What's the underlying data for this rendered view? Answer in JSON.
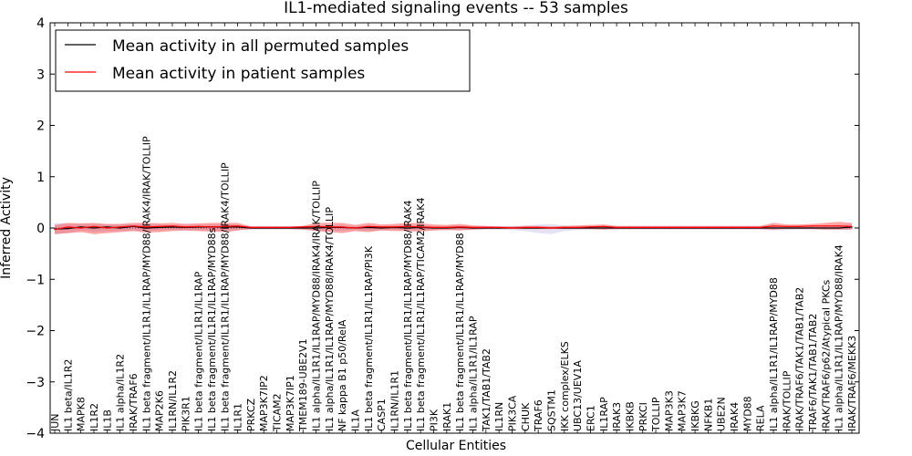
{
  "chart_data": {
    "type": "line",
    "title": "IL1-mediated signaling events -- 53 samples",
    "xlabel": "Cellular Entities",
    "ylabel": "Inferred Activity",
    "ylim": [
      -4,
      4
    ],
    "yticks": [
      -4,
      -3,
      -2,
      -1,
      0,
      1,
      2,
      3,
      4
    ],
    "grid": false,
    "legend_position": "top-left",
    "categories": [
      "JUN",
      "IL1 beta/IL1R2",
      "MAPK8",
      "IL1R2",
      "IL1B",
      "IL1 alpha/IL1R2",
      "IRAK/TRAF6",
      "IL1 beta fragment/IL1R1/IL1RAP/MYD88/IRAK4/IRAK/TOLLIP",
      "MAP2K6",
      "IL1RN/IL1R2",
      "PIK3R1",
      "IL1 beta fragment/IL1R1/IL1RAP",
      "IL1 beta fragment/IL1R1/IL1RAP/MYD88s",
      "IL1 beta fragment/IL1R1/IL1RAP/MYD88/IRAK4/TOLLIP",
      "IL1R1",
      "PRKCZ",
      "MAP3K7IP2",
      "TICAM2",
      "MAP3K7IP1",
      "TMEM189-UBE2V1",
      "IL1 alpha/IL1R1/IL1RAP/MYD88/IRAK4/IRAK/TOLLIP",
      "IL1 alpha/IL1R1/IL1RAP/MYD88/IRAK4/TOLLIP",
      "NF kappa B1 p50/RelA",
      "IL1A",
      "IL1 beta fragment/IL1R1/IL1RAP/PI3K",
      "CASP1",
      "IL1RN/IL1R1",
      "IL1 beta fragment/IL1R1/IL1RAP/MYD88/IRAK4",
      "IL1 beta fragment/IL1R1/IL1RAP/TICAM2/IRAK4",
      "PI3K",
      "IRAK1",
      "IL1 beta fragment/IL1R1/IL1RAP/MYD88",
      "IL1 alpha/IL1R1/IL1RAP",
      "TAK1/TAB1/TAB2",
      "IL1RN",
      "PIK3CA",
      "CHUK",
      "TRAF6",
      "SQSTM1",
      "IKK complex/ELKS",
      "UBC13/UEV1A",
      "ERC1",
      "IL1RAP",
      "IRAK3",
      "IKBKB",
      "PRKCI",
      "TOLLIP",
      "MAP3K3",
      "MAP3K7",
      "IKBKG",
      "NFKB1",
      "UBE2N",
      "IRAK4",
      "MYD88",
      "RELA",
      "IL1 alpha/IL1R1/IL1RAP/MYD88",
      "IRAK/TOLLIP",
      "IRAK/TRAF6/TAK1/TAB1/TAB2",
      "TRAF6/TAK1/TAB1/TAB2",
      "IRAK/TRAF6/p62/Atypical PKCs",
      "IL1 alpha/IL1R1/IL1RAP/MYD88/IRAK4",
      "IRAK/TRAF6/MEKK3"
    ],
    "series": [
      {
        "name": "Mean activity in all permuted samples",
        "color": "#000000",
        "values": [
          -0.02,
          -0.01,
          0.02,
          0.0,
          0.02,
          0.0,
          0.03,
          0.0,
          0.01,
          0.02,
          0.01,
          0.02,
          0.02,
          0.02,
          0.02,
          0.0,
          0.0,
          0.0,
          0.0,
          0.0,
          0.0,
          0.01,
          0.01,
          0.0,
          0.01,
          0.0,
          0.01,
          0.0,
          0.01,
          0.0,
          0.0,
          0.01,
          0.0,
          0.0,
          0.0,
          0.0,
          0.0,
          0.0,
          0.0,
          0.0,
          0.0,
          0.0,
          0.0,
          0.0,
          0.0,
          0.0,
          0.0,
          0.0,
          0.0,
          0.0,
          0.0,
          0.0,
          0.0,
          0.0,
          0.0,
          0.0,
          0.0,
          0.0,
          0.0,
          0.0,
          0.0,
          0.02
        ],
        "band_lower": [
          -0.12,
          -0.1,
          -0.05,
          -0.08,
          -0.06,
          -0.06,
          -0.05,
          -0.06,
          -0.05,
          -0.04,
          -0.05,
          -0.05,
          -0.05,
          -0.06,
          -0.04,
          -0.03,
          -0.03,
          -0.03,
          -0.03,
          -0.03,
          -0.05,
          -0.06,
          -0.05,
          -0.04,
          -0.06,
          -0.04,
          -0.04,
          -0.05,
          -0.05,
          -0.04,
          -0.03,
          -0.04,
          -0.04,
          -0.03,
          -0.03,
          -0.04,
          -0.06,
          -0.1,
          -0.12,
          -0.06,
          -0.04,
          -0.03,
          -0.03,
          -0.03,
          -0.03,
          -0.03,
          -0.03,
          -0.03,
          -0.03,
          -0.03,
          -0.03,
          -0.03,
          -0.03,
          -0.03,
          -0.03,
          -0.05,
          -0.04,
          -0.03,
          -0.03,
          -0.04,
          -0.04,
          -0.03
        ],
        "band_upper": [
          0.1,
          0.08,
          0.08,
          0.08,
          0.07,
          0.07,
          0.07,
          0.08,
          0.07,
          0.06,
          0.06,
          0.06,
          0.07,
          0.08,
          0.06,
          0.04,
          0.04,
          0.04,
          0.04,
          0.04,
          0.05,
          0.05,
          0.05,
          0.04,
          0.05,
          0.04,
          0.05,
          0.05,
          0.05,
          0.04,
          0.04,
          0.05,
          0.04,
          0.04,
          0.03,
          0.04,
          0.05,
          0.07,
          0.08,
          0.05,
          0.04,
          0.04,
          0.04,
          0.04,
          0.04,
          0.04,
          0.04,
          0.04,
          0.04,
          0.04,
          0.04,
          0.04,
          0.04,
          0.04,
          0.04,
          0.05,
          0.04,
          0.04,
          0.04,
          0.05,
          0.06,
          0.07
        ]
      },
      {
        "name": "Mean activity in patient samples",
        "color": "#ff0000",
        "values": [
          -0.03,
          0.02,
          0.0,
          0.03,
          0.0,
          0.02,
          0.04,
          0.02,
          0.03,
          0.04,
          0.02,
          0.03,
          0.02,
          0.03,
          0.04,
          0.01,
          0.01,
          0.01,
          0.01,
          0.02,
          0.03,
          0.02,
          0.02,
          0.0,
          0.03,
          0.02,
          0.02,
          0.03,
          0.02,
          0.01,
          0.01,
          0.02,
          0.01,
          0.01,
          0.01,
          0.0,
          0.01,
          0.01,
          0.0,
          0.01,
          0.01,
          0.02,
          0.03,
          0.01,
          0.01,
          0.01,
          0.01,
          0.01,
          0.01,
          0.01,
          0.01,
          0.01,
          0.01,
          0.01,
          0.01,
          0.04,
          0.03,
          0.03,
          0.04,
          0.04,
          0.04,
          0.03
        ],
        "band_lower": [
          -0.12,
          -0.1,
          -0.08,
          -0.12,
          -0.1,
          -0.08,
          -0.06,
          -0.09,
          -0.08,
          -0.06,
          -0.05,
          -0.06,
          -0.07,
          -0.08,
          -0.05,
          -0.02,
          -0.02,
          -0.02,
          -0.02,
          -0.03,
          -0.06,
          -0.08,
          -0.1,
          -0.06,
          -0.08,
          -0.05,
          -0.06,
          -0.06,
          -0.07,
          -0.05,
          -0.04,
          -0.05,
          -0.03,
          -0.02,
          -0.02,
          -0.02,
          -0.02,
          -0.02,
          -0.02,
          -0.02,
          -0.02,
          -0.02,
          -0.03,
          -0.02,
          -0.02,
          -0.02,
          -0.02,
          -0.02,
          -0.02,
          -0.02,
          -0.02,
          -0.02,
          -0.02,
          -0.02,
          -0.02,
          -0.03,
          -0.02,
          -0.02,
          -0.02,
          -0.03,
          -0.03,
          -0.03
        ],
        "band_upper": [
          0.06,
          0.1,
          0.09,
          0.1,
          0.08,
          0.08,
          0.1,
          0.1,
          0.09,
          0.1,
          0.08,
          0.09,
          0.1,
          0.1,
          0.1,
          0.03,
          0.03,
          0.03,
          0.03,
          0.04,
          0.1,
          0.1,
          0.1,
          0.06,
          0.1,
          0.07,
          0.08,
          0.1,
          0.09,
          0.07,
          0.06,
          0.08,
          0.05,
          0.04,
          0.03,
          0.03,
          0.04,
          0.04,
          0.03,
          0.04,
          0.05,
          0.06,
          0.07,
          0.04,
          0.04,
          0.04,
          0.04,
          0.04,
          0.04,
          0.04,
          0.04,
          0.04,
          0.04,
          0.04,
          0.04,
          0.1,
          0.07,
          0.07,
          0.08,
          0.1,
          0.12,
          0.1
        ]
      }
    ]
  }
}
